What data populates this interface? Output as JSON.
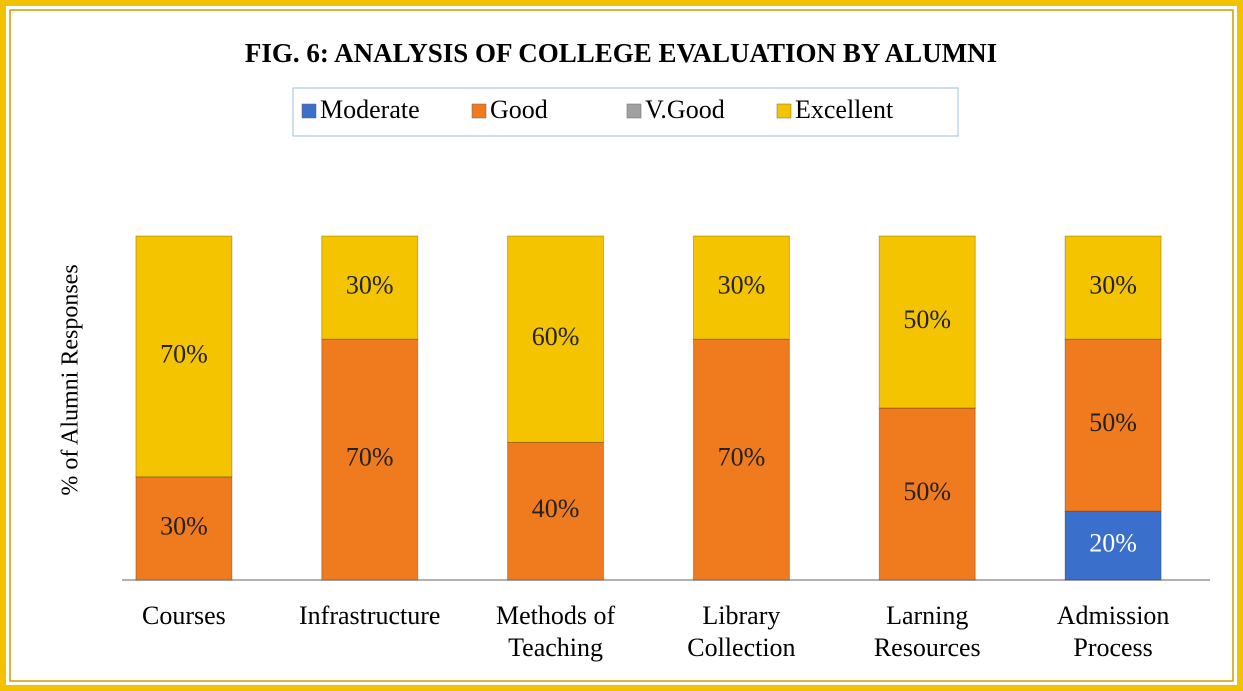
{
  "chart_data": {
    "type": "stacked_bar",
    "title": "FIG. 6: ANALYSIS OF COLLEGE EVALUATION BY ALUMNI",
    "y_label": "% of Alumni Responses",
    "categories": [
      "Courses",
      "Infrastructure",
      "Methods of Teaching",
      "Library Collection",
      "Larning Resources",
      "Admission Process"
    ],
    "series": [
      {
        "name": "Moderate",
        "color": "#3a6fcc",
        "values": [
          0,
          0,
          0,
          0,
          0,
          20
        ],
        "value_labels": [
          null,
          null,
          null,
          null,
          null,
          "20%"
        ]
      },
      {
        "name": "Good",
        "color": "#f07a1e",
        "values": [
          30,
          70,
          40,
          70,
          50,
          50
        ],
        "value_labels": [
          "30%",
          "70%",
          "40%",
          "70%",
          "50%",
          "50%"
        ]
      },
      {
        "name": "V.Good",
        "color": "#a0a0a0",
        "values": [
          0,
          0,
          0,
          0,
          0,
          0
        ],
        "value_labels": [
          null,
          null,
          null,
          null,
          null,
          null
        ]
      },
      {
        "name": "Excellent",
        "color": "#f5c400",
        "values": [
          70,
          30,
          60,
          30,
          50,
          30
        ],
        "value_labels": [
          "70%",
          "30%",
          "60%",
          "30%",
          "50%",
          "30%"
        ]
      }
    ],
    "ylim": [
      0,
      100
    ],
    "legend": "top"
  }
}
